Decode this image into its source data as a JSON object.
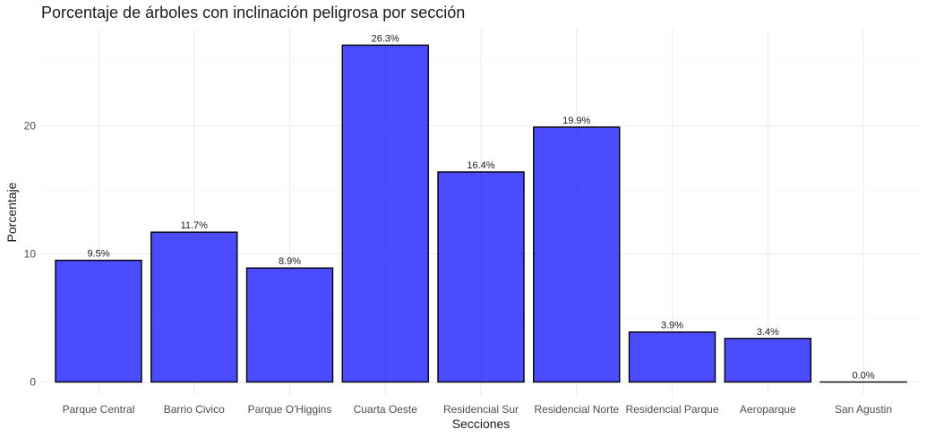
{
  "chart_data": {
    "type": "bar",
    "title": "Porcentaje de árboles con inclinación peligrosa por sección",
    "xlabel": "Secciones",
    "ylabel": "Porcentaje",
    "categories": [
      "Parque Central",
      "Barrio Civico",
      "Parque O'Higgins",
      "Cuarta Oeste",
      "Residencial Sur",
      "Residencial Norte",
      "Residencial Parque",
      "Aeroparque",
      "San Agustin"
    ],
    "values": [
      9.5,
      11.7,
      8.9,
      26.3,
      16.4,
      19.9,
      3.9,
      3.4,
      0.0
    ],
    "data_labels": [
      "9.5%",
      "11.7%",
      "8.9%",
      "26.3%",
      "16.4%",
      "19.9%",
      "3.9%",
      "3.4%",
      "0.0%"
    ],
    "yticks": [
      0,
      10,
      20
    ],
    "ylim": [
      0,
      27.6
    ],
    "grid": true,
    "bar_color": "#0000FF",
    "bar_outline": "#000000"
  }
}
